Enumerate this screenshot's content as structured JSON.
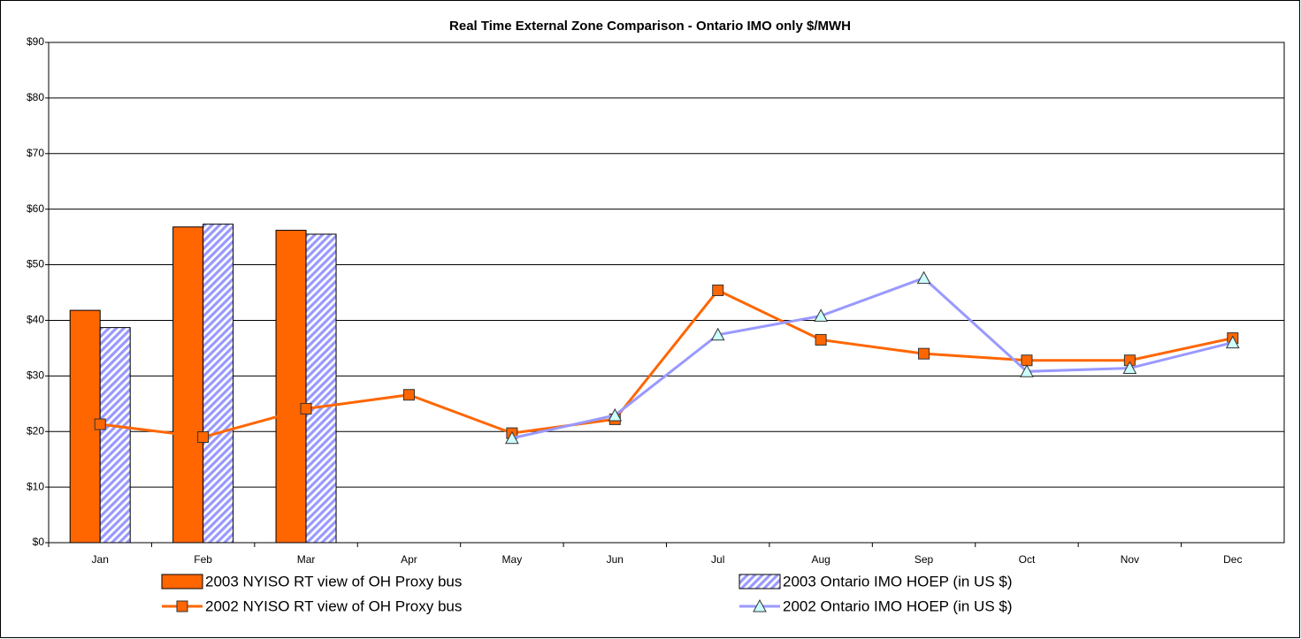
{
  "chart_data": {
    "type": "combo",
    "title": "Real Time External Zone Comparison - Ontario IMO only $/MWH",
    "categories": [
      "Jan",
      "Feb",
      "Mar",
      "Apr",
      "May",
      "Jun",
      "Jul",
      "Aug",
      "Sep",
      "Oct",
      "Nov",
      "Dec"
    ],
    "series": [
      {
        "name": "2003 NYISO RT view of OH Proxy bus",
        "type": "bar",
        "color": "#ff6600",
        "values": [
          41.8,
          56.8,
          56.2,
          null,
          null,
          null,
          null,
          null,
          null,
          null,
          null,
          null
        ]
      },
      {
        "name": "2003 Ontario IMO HOEP (in US $)",
        "type": "bar",
        "color": "#9999ff",
        "hatch": true,
        "values": [
          38.7,
          57.3,
          55.5,
          null,
          null,
          null,
          null,
          null,
          null,
          null,
          null,
          null
        ]
      },
      {
        "name": "2002 NYISO RT view of OH Proxy bus",
        "type": "line",
        "color": "#ff6600",
        "marker": "square",
        "marker_color": "#ff6600",
        "values": [
          21.3,
          19.0,
          24.1,
          26.6,
          19.7,
          22.2,
          45.4,
          36.5,
          34.0,
          32.8,
          32.8,
          36.8
        ]
      },
      {
        "name": "2002 Ontario IMO HOEP (in US $)",
        "type": "line",
        "color": "#9999ff",
        "marker": "triangle",
        "marker_color": "#ccffff",
        "values": [
          null,
          null,
          null,
          null,
          18.8,
          22.9,
          37.4,
          40.8,
          47.6,
          30.8,
          31.4,
          36.0
        ]
      }
    ],
    "ylim": [
      0,
      90
    ],
    "yticks": [
      {
        "value": 0,
        "label": "$0"
      },
      {
        "value": 10,
        "label": "$10"
      },
      {
        "value": 20,
        "label": "$20"
      },
      {
        "value": 30,
        "label": "$30"
      },
      {
        "value": 40,
        "label": "$40"
      },
      {
        "value": 50,
        "label": "$50"
      },
      {
        "value": 60,
        "label": "$60"
      },
      {
        "value": 70,
        "label": "$70"
      },
      {
        "value": 80,
        "label": "$80"
      },
      {
        "value": 90,
        "label": "$90"
      }
    ],
    "grid": true,
    "legend": "bottom"
  }
}
